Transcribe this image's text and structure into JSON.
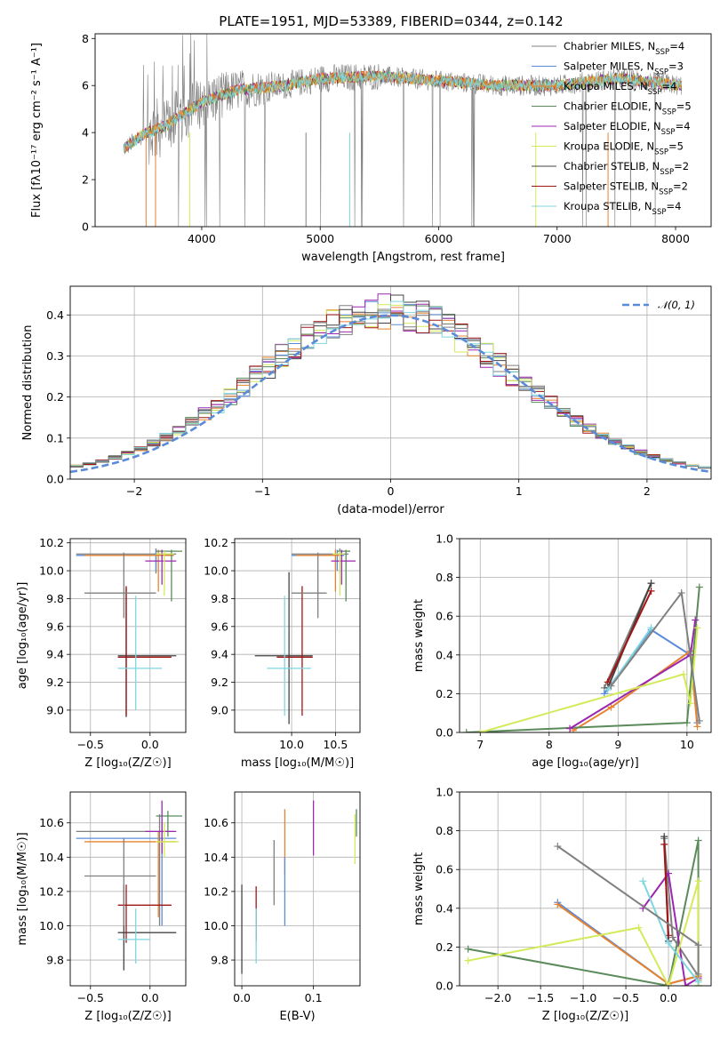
{
  "figure": {
    "title": "PLATE=1951, MJD=53389, FIBERID=0344, z=0.142"
  },
  "models": [
    {
      "name": "Chabrier MILES",
      "nssp": "4",
      "color": "#808080"
    },
    {
      "name": "Salpeter MILES",
      "nssp": "3",
      "color": "#5a8bd8"
    },
    {
      "name": "Kroupa MILES",
      "nssp": "4",
      "color": "#e8822e"
    },
    {
      "name": "Chabrier ELODIE",
      "nssp": "5",
      "color": "#5b8a5b"
    },
    {
      "name": "Salpeter ELODIE",
      "nssp": "4",
      "color": "#9c27b0"
    },
    {
      "name": "Kroupa ELODIE",
      "nssp": "5",
      "color": "#d4ea5a"
    },
    {
      "name": "Chabrier STELIB",
      "nssp": "2",
      "color": "#444444"
    },
    {
      "name": "Salpeter STELIB",
      "nssp": "2",
      "color": "#a31515"
    },
    {
      "name": "Kroupa STELIB",
      "nssp": "4",
      "color": "#7fd6e0"
    }
  ],
  "chart_data": [
    {
      "id": "spectrum",
      "type": "line",
      "xlabel": "wavelength [Angstrom, rest frame]",
      "ylabel": "Flux [fλ10⁻¹⁷ erg cm⁻² s⁻¹ A⁻¹]",
      "xlim": [
        3100,
        8300
      ],
      "ylim": [
        0,
        8.2
      ],
      "xticks": [
        4000,
        5000,
        6000,
        7000,
        8000
      ],
      "yticks": [
        0,
        2,
        4,
        6,
        8
      ],
      "legend_position": "upper right",
      "series_shape": {
        "x": [
          3340,
          3500,
          3700,
          4000,
          4300,
          4700,
          5000,
          5500,
          6000,
          6500,
          7000,
          7500,
          8050
        ],
        "y": [
          3.3,
          3.9,
          4.3,
          5.3,
          5.8,
          6.0,
          6.3,
          6.4,
          6.2,
          6.0,
          6.0,
          6.3,
          6.0
        ]
      }
    },
    {
      "id": "residuals",
      "type": "bar",
      "xlabel": "(data-model)/error",
      "ylabel": "Normed distribution",
      "xlim": [
        -2.5,
        2.5
      ],
      "ylim": [
        0,
        0.47
      ],
      "xticks": [
        -2,
        -1,
        0,
        1,
        2
      ],
      "yticks": [
        0.0,
        0.1,
        0.2,
        0.3,
        0.4
      ],
      "reference_label": "𝒩(0, 1)",
      "reference_color": "#5a8bd8",
      "legend_position": "upper right",
      "bin_width": 0.1
    },
    {
      "id": "age_vs_Z",
      "type": "scatter",
      "xlabel": "Z [log₁₀(Z/Z☉)]",
      "ylabel": "age  [log₁₀(age/yr)]",
      "xlim": [
        -0.67,
        0.3
      ],
      "ylim": [
        8.84,
        10.23
      ],
      "xticks": [
        -0.5,
        0.0
      ],
      "yticks": [
        9.0,
        9.2,
        9.4,
        9.6,
        9.8,
        10.0,
        10.2
      ],
      "points": [
        {
          "model": 0,
          "x": 0.05,
          "y": 10.12,
          "xlo": -0.62,
          "xhi": 0.22,
          "ylo": 9.98,
          "yhi": 10.16
        },
        {
          "model": 1,
          "x": 0.05,
          "y": 10.11,
          "xlo": -0.62,
          "xhi": 0.2,
          "ylo": 10.0,
          "yhi": 10.15
        },
        {
          "model": 2,
          "x": 0.07,
          "y": 10.11,
          "xlo": -0.55,
          "xhi": 0.2,
          "ylo": 9.85,
          "yhi": 10.15
        },
        {
          "model": 3,
          "x": 0.18,
          "y": 10.14,
          "xlo": 0.05,
          "xhi": 0.27,
          "ylo": 9.78,
          "yhi": 10.15
        },
        {
          "model": 4,
          "x": 0.1,
          "y": 10.07,
          "xlo": -0.04,
          "xhi": 0.22,
          "ylo": 9.9,
          "yhi": 10.15
        },
        {
          "model": 5,
          "x": 0.12,
          "y": 10.12,
          "xlo": 0.05,
          "xhi": 0.2,
          "ylo": 9.82,
          "yhi": 10.14
        },
        {
          "model": 6,
          "x": -0.2,
          "y": 9.39,
          "xlo": -0.27,
          "xhi": 0.22,
          "ylo": 8.95,
          "yhi": 9.88
        },
        {
          "model": 7,
          "x": -0.2,
          "y": 9.38,
          "xlo": -0.27,
          "xhi": 0.18,
          "ylo": 8.96,
          "yhi": 9.89
        },
        {
          "model": 8,
          "x": -0.12,
          "y": 9.3,
          "xlo": -0.27,
          "xhi": 0.1,
          "ylo": 9.0,
          "yhi": 9.82
        },
        {
          "model": 9,
          "x": -0.22,
          "y": 9.84,
          "xlo": -0.55,
          "xhi": 0.05,
          "ylo": 9.66,
          "yhi": 10.13
        }
      ]
    },
    {
      "id": "age_vs_mass",
      "type": "scatter",
      "xlabel": "mass [log₁₀(M/M☉)]",
      "ylabel": "",
      "xlim": [
        9.35,
        10.78
      ],
      "ylim": [
        8.84,
        10.23
      ],
      "xticks": [
        10.0,
        10.5
      ],
      "yticks": [
        9.0,
        9.2,
        9.4,
        9.6,
        9.8,
        10.0,
        10.2
      ],
      "points": [
        {
          "model": 0,
          "x": 10.55,
          "y": 10.12,
          "xlo": 10.0,
          "xhi": 10.65,
          "ylo": 9.98,
          "yhi": 10.16
        },
        {
          "model": 1,
          "x": 10.52,
          "y": 10.11,
          "xlo": 10.0,
          "xhi": 10.6,
          "ylo": 10.0,
          "yhi": 10.15
        },
        {
          "model": 2,
          "x": 10.5,
          "y": 10.11,
          "xlo": 10.05,
          "xhi": 10.55,
          "ylo": 9.85,
          "yhi": 10.15
        },
        {
          "model": 3,
          "x": 10.62,
          "y": 10.14,
          "xlo": 10.52,
          "xhi": 10.67,
          "ylo": 9.78,
          "yhi": 10.15
        },
        {
          "model": 4,
          "x": 10.57,
          "y": 10.07,
          "xlo": 10.45,
          "xhi": 10.73,
          "ylo": 9.9,
          "yhi": 10.15
        },
        {
          "model": 5,
          "x": 10.55,
          "y": 10.12,
          "xlo": 10.47,
          "xhi": 10.6,
          "ylo": 9.82,
          "yhi": 10.14
        },
        {
          "model": 6,
          "x": 9.97,
          "y": 9.39,
          "xlo": 9.58,
          "xhi": 10.24,
          "ylo": 8.9,
          "yhi": 9.99
        },
        {
          "model": 7,
          "x": 10.12,
          "y": 9.38,
          "xlo": 9.83,
          "xhi": 10.24,
          "ylo": 8.96,
          "yhi": 9.89
        },
        {
          "model": 8,
          "x": 9.92,
          "y": 9.3,
          "xlo": 9.72,
          "xhi": 10.22,
          "ylo": 8.96,
          "yhi": 9.82
        },
        {
          "model": 9,
          "x": 10.3,
          "y": 9.84,
          "xlo": 10.0,
          "xhi": 10.4,
          "ylo": 9.66,
          "yhi": 10.13
        }
      ]
    },
    {
      "id": "weight_vs_age",
      "type": "line",
      "xlabel": "age  [log₁₀(age/yr)]",
      "ylabel": "mass weight",
      "xlim": [
        6.7,
        10.35
      ],
      "ylim": [
        0,
        1.0
      ],
      "xticks": [
        7,
        8,
        9,
        10
      ],
      "yticks": [
        0.0,
        0.2,
        0.4,
        0.6,
        0.8,
        1.0
      ],
      "series": [
        {
          "model": 0,
          "x": [
            8.8,
            9.48
          ],
          "y": [
            0.23,
            0.77
          ]
        },
        {
          "model": 1,
          "x": [
            8.8,
            9.48,
            10.05,
            10.15
          ],
          "y": [
            0.2,
            0.53,
            0.4,
            0.05
          ]
        },
        {
          "model": 2,
          "x": [
            8.35,
            8.9,
            10.05,
            10.15
          ],
          "y": [
            0.01,
            0.13,
            0.42,
            0.03
          ]
        },
        {
          "model": 3,
          "x": [
            6.8,
            10.0,
            10.18
          ],
          "y": [
            0.0,
            0.05,
            0.75
          ]
        },
        {
          "model": 4,
          "x": [
            8.3,
            10.05,
            10.12
          ],
          "y": [
            0.02,
            0.4,
            0.58
          ]
        },
        {
          "model": 5,
          "x": [
            7.0,
            9.95,
            10.05,
            10.15
          ],
          "y": [
            0.0,
            0.3,
            0.15,
            0.54
          ]
        },
        {
          "model": 6,
          "x": [
            8.85,
            9.48
          ],
          "y": [
            0.23,
            0.77
          ]
        },
        {
          "model": 7,
          "x": [
            8.85,
            9.48
          ],
          "y": [
            0.26,
            0.73
          ]
        },
        {
          "model": 8,
          "x": [
            8.85,
            9.48
          ],
          "y": [
            0.22,
            0.54
          ]
        },
        {
          "model": 9,
          "x": [
            8.9,
            9.92,
            10.18
          ],
          "y": [
            0.24,
            0.72,
            0.06
          ]
        }
      ]
    },
    {
      "id": "mass_vs_Z",
      "type": "scatter",
      "xlabel": "Z [log₁₀(Z/Z☉)]",
      "ylabel": "mass [log₁₀(M/M☉)]",
      "xlim": [
        -0.67,
        0.3
      ],
      "ylim": [
        9.65,
        10.78
      ],
      "xticks": [
        -0.5,
        0.0
      ],
      "yticks": [
        9.8,
        10.0,
        10.2,
        10.4,
        10.6
      ],
      "points": [
        {
          "model": 0,
          "x": 0.08,
          "y": 10.55,
          "xlo": -0.62,
          "xhi": 0.2,
          "ylo": 10.0,
          "yhi": 10.65
        },
        {
          "model": 1,
          "x": 0.1,
          "y": 10.51,
          "xlo": -0.62,
          "xhi": 0.22,
          "ylo": 10.0,
          "yhi": 10.6
        },
        {
          "model": 2,
          "x": 0.07,
          "y": 10.49,
          "xlo": -0.55,
          "xhi": 0.22,
          "ylo": 10.05,
          "yhi": 10.55
        },
        {
          "model": 3,
          "x": 0.15,
          "y": 10.64,
          "xlo": 0.05,
          "xhi": 0.27,
          "ylo": 10.52,
          "yhi": 10.67
        },
        {
          "model": 4,
          "x": 0.1,
          "y": 10.55,
          "xlo": -0.04,
          "xhi": 0.22,
          "ylo": 10.42,
          "yhi": 10.73
        },
        {
          "model": 5,
          "x": 0.12,
          "y": 10.49,
          "xlo": 0.05,
          "xhi": 0.24,
          "ylo": 10.4,
          "yhi": 10.6
        },
        {
          "model": 6,
          "x": -0.22,
          "y": 9.96,
          "xlo": -0.27,
          "xhi": 0.22,
          "ylo": 9.74,
          "yhi": 10.24
        },
        {
          "model": 7,
          "x": -0.2,
          "y": 10.12,
          "xlo": -0.27,
          "xhi": 0.18,
          "ylo": 9.9,
          "yhi": 10.24
        },
        {
          "model": 8,
          "x": -0.12,
          "y": 9.92,
          "xlo": -0.27,
          "xhi": 0.0,
          "ylo": 9.78,
          "yhi": 10.1
        },
        {
          "model": 9,
          "x": -0.22,
          "y": 10.29,
          "xlo": -0.55,
          "xhi": 0.05,
          "ylo": 10.0,
          "yhi": 10.51
        }
      ]
    },
    {
      "id": "mass_vs_ebv",
      "type": "scatter",
      "xlabel": "E(B-V)",
      "ylabel": "",
      "xlim": [
        -0.01,
        0.165
      ],
      "ylim": [
        9.65,
        10.78
      ],
      "xticks": [
        0.0,
        0.1
      ],
      "yticks": [
        9.8,
        10.0,
        10.2,
        10.4,
        10.6
      ],
      "segments": [
        {
          "model": 6,
          "x": 0.0,
          "ylo": 9.72,
          "yhi": 10.24
        },
        {
          "model": 7,
          "x": 0.02,
          "ylo": 9.91,
          "yhi": 10.23
        },
        {
          "model": 8,
          "x": 0.02,
          "ylo": 9.78,
          "yhi": 10.1
        },
        {
          "model": 9,
          "x": 0.045,
          "ylo": 10.12,
          "yhi": 10.5
        },
        {
          "model": 2,
          "x": 0.06,
          "ylo": 10.3,
          "yhi": 10.68
        },
        {
          "model": 1,
          "x": 0.06,
          "ylo": 10.0,
          "yhi": 10.4
        },
        {
          "model": 4,
          "x": 0.1,
          "ylo": 10.41,
          "yhi": 10.73
        },
        {
          "model": 5,
          "x": 0.158,
          "ylo": 10.36,
          "yhi": 10.65
        },
        {
          "model": 3,
          "x": 0.16,
          "ylo": 10.52,
          "yhi": 10.68
        }
      ]
    },
    {
      "id": "weight_vs_Z",
      "type": "line",
      "xlabel": "Z [log₁₀(Z/Z☉)]",
      "ylabel": "mass weight",
      "xlim": [
        -2.45,
        0.5
      ],
      "ylim": [
        0,
        1.0
      ],
      "xticks": [
        -2.0,
        -1.5,
        -1.0,
        -0.5,
        0.0
      ],
      "yticks": [
        0.0,
        0.2,
        0.4,
        0.6,
        0.8,
        1.0
      ],
      "series": [
        {
          "model": 0,
          "x": [
            -0.05,
            0.05,
            0.35,
            0.35
          ],
          "y": [
            0.76,
            0.25,
            0.05,
            0.03
          ]
        },
        {
          "model": 1,
          "x": [
            -1.3,
            0.0,
            0.35
          ],
          "y": [
            0.43,
            0.01,
            0.05
          ]
        },
        {
          "model": 2,
          "x": [
            -1.3,
            0.0,
            0.35,
            0.35
          ],
          "y": [
            0.42,
            0.01,
            0.05,
            0.0
          ]
        },
        {
          "model": 3,
          "x": [
            -2.35,
            0.0,
            0.35,
            0.35
          ],
          "y": [
            0.19,
            0.0,
            0.75,
            0.0
          ]
        },
        {
          "model": 4,
          "x": [
            -0.3,
            0.0,
            0.2,
            0.35
          ],
          "y": [
            0.4,
            0.58,
            0.0,
            0.04
          ]
        },
        {
          "model": 5,
          "x": [
            -2.35,
            -0.35,
            0.0,
            0.35,
            0.35
          ],
          "y": [
            0.13,
            0.3,
            0.0,
            0.54,
            0.0
          ]
        },
        {
          "model": 6,
          "x": [
            -0.05,
            0.0
          ],
          "y": [
            0.77,
            0.23
          ]
        },
        {
          "model": 7,
          "x": [
            -0.05,
            0.0
          ],
          "y": [
            0.73,
            0.26
          ]
        },
        {
          "model": 8,
          "x": [
            -0.3,
            0.0,
            0.35
          ],
          "y": [
            0.54,
            0.22,
            0.02
          ]
        },
        {
          "model": 9,
          "x": [
            -1.3,
            0.35,
            0.35
          ],
          "y": [
            0.72,
            0.21,
            0.06
          ]
        }
      ]
    }
  ]
}
